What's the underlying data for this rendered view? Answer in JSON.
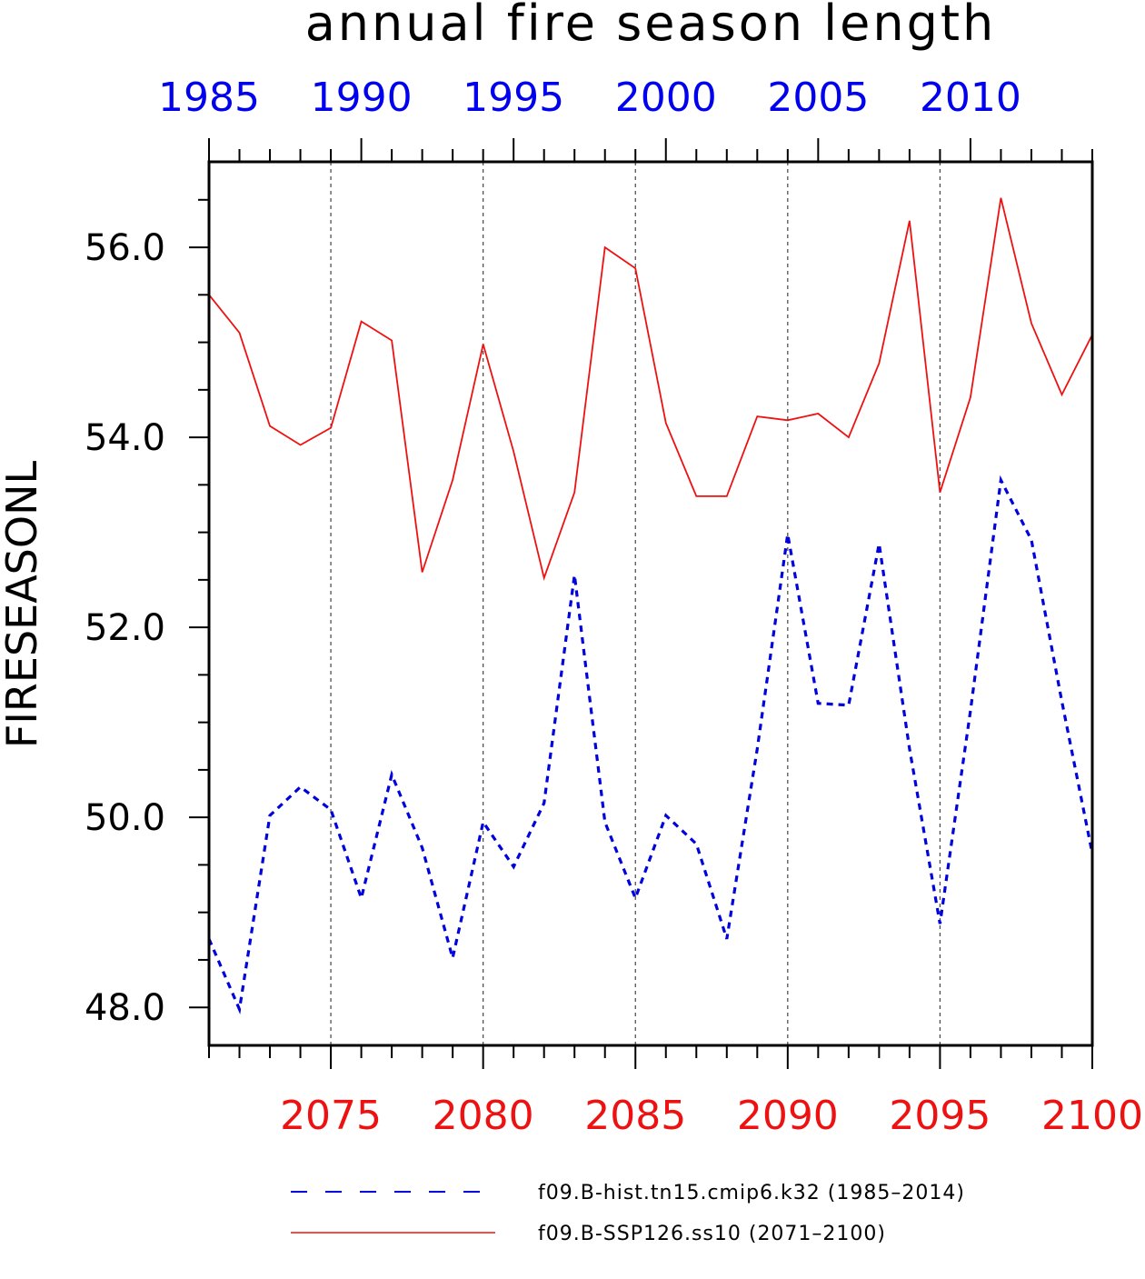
{
  "chart_data": {
    "type": "line",
    "title": "annual fire season length",
    "ylabel": "FIRESEASONL",
    "xlabel": "",
    "ylim": [
      47.6,
      56.9
    ],
    "yticks_major": [
      48.0,
      50.0,
      52.0,
      54.0,
      56.0
    ],
    "yticks_minor_step": 0.5,
    "grid": "vertical dashed lines at bottom-axis major ticks",
    "legend_placement": "bottom",
    "bottom_axis": {
      "range": [
        2071,
        2100
      ],
      "major_ticks": [
        2075,
        2080,
        2085,
        2090,
        2095,
        2100
      ],
      "labels": [
        "2075",
        "2080",
        "2085",
        "2090",
        "2095",
        "2100"
      ],
      "color": "#ee1111"
    },
    "top_axis": {
      "range": [
        1985,
        2014
      ],
      "major_ticks": [
        1985,
        1990,
        1995,
        2000,
        2005,
        2010
      ],
      "labels": [
        "1985",
        "1990",
        "1995",
        "2000",
        "2005",
        "2010"
      ],
      "color": "#0000ee"
    },
    "series": [
      {
        "name": "f09.B-hist.tn15.cmip6.k32 (1985–2014)",
        "axis": "top",
        "color": "#0000dd",
        "dash": "dashed",
        "x": [
          1985,
          1986,
          1987,
          1988,
          1989,
          1990,
          1991,
          1992,
          1993,
          1994,
          1995,
          1996,
          1997,
          1998,
          1999,
          2000,
          2001,
          2002,
          2003,
          2004,
          2005,
          2006,
          2007,
          2008,
          2009,
          2010,
          2011,
          2012,
          2013,
          2014
        ],
        "values": [
          48.72,
          47.98,
          50.02,
          50.32,
          50.08,
          49.15,
          50.45,
          49.68,
          48.52,
          49.95,
          49.48,
          50.15,
          52.55,
          49.95,
          49.15,
          50.02,
          49.72,
          48.72,
          50.72,
          52.98,
          51.2,
          51.18,
          52.88,
          50.72,
          48.88,
          51.12,
          53.55,
          52.92,
          51.22,
          49.62
        ]
      },
      {
        "name": "f09.B-SSP126.ss10 (2071–2100)",
        "axis": "bottom",
        "color": "#ee1111",
        "dash": "solid",
        "x": [
          2071,
          2072,
          2073,
          2074,
          2075,
          2076,
          2077,
          2078,
          2079,
          2080,
          2081,
          2082,
          2083,
          2084,
          2085,
          2086,
          2087,
          2088,
          2089,
          2090,
          2091,
          2092,
          2093,
          2094,
          2095,
          2096,
          2097,
          2098,
          2099,
          2100
        ],
        "values": [
          55.5,
          55.1,
          54.12,
          53.92,
          54.1,
          55.22,
          55.02,
          52.58,
          53.55,
          54.98,
          53.85,
          52.52,
          53.42,
          56.0,
          55.78,
          54.15,
          53.38,
          53.38,
          54.22,
          54.18,
          54.25,
          54.0,
          54.78,
          56.28,
          53.42,
          54.42,
          56.52,
          55.2,
          54.45,
          55.08
        ]
      }
    ]
  }
}
